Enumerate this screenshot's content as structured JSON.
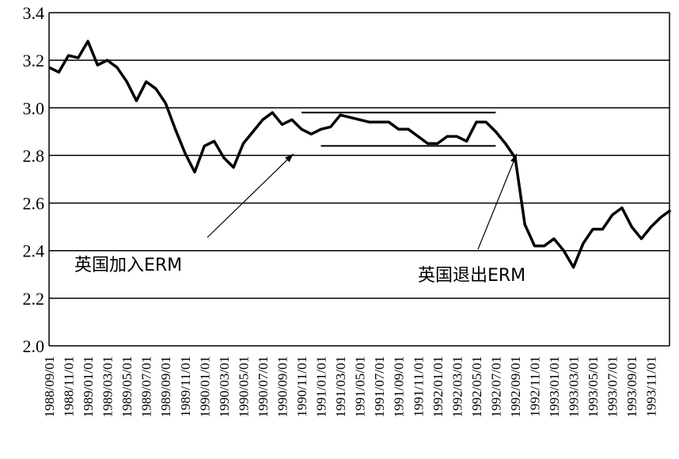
{
  "chart_data": {
    "type": "line",
    "title": "",
    "xlabel": "",
    "ylabel": "",
    "ylim": [
      2.0,
      3.4
    ],
    "yticks": [
      "2.0",
      "2.2",
      "2.4",
      "2.6",
      "2.8",
      "3.0",
      "3.2",
      "3.4"
    ],
    "grid": "horizontal",
    "x_tick_labels": [
      "1988/09/01",
      "1988/11/01",
      "1989/01/01",
      "1989/03/01",
      "1989/05/01",
      "1989/07/01",
      "1989/09/01",
      "1989/11/01",
      "1990/01/01",
      "1990/03/01",
      "1990/05/01",
      "1990/07/01",
      "1990/09/01",
      "1990/11/01",
      "1991/01/01",
      "1991/03/01",
      "1991/05/01",
      "1991/07/01",
      "1991/09/01",
      "1991/11/01",
      "1992/01/01",
      "1992/03/01",
      "1992/05/01",
      "1992/07/01",
      "1992/09/01",
      "1992/11/01",
      "1993/01/01",
      "1993/03/01",
      "1993/05/01",
      "1993/07/01",
      "1993/09/01",
      "1993/11/01"
    ],
    "series": [
      {
        "values": [
          3.17,
          3.15,
          3.22,
          3.21,
          3.28,
          3.18,
          3.2,
          3.17,
          3.11,
          3.03,
          3.11,
          3.08,
          3.02,
          2.91,
          2.81,
          2.73,
          2.84,
          2.86,
          2.79,
          2.75,
          2.85,
          2.9,
          2.95,
          2.98,
          2.93,
          2.95,
          2.91,
          2.89,
          2.91,
          2.92,
          2.97,
          2.96,
          2.95,
          2.94,
          2.94,
          2.94,
          2.91,
          2.91,
          2.88,
          2.85,
          2.85,
          2.88,
          2.88,
          2.86,
          2.94,
          2.94,
          2.9,
          2.85,
          2.79,
          2.51,
          2.42,
          2.42,
          2.45,
          2.4,
          2.33,
          2.43,
          2.49,
          2.49,
          2.55,
          2.58,
          2.5,
          2.45,
          2.5,
          2.54,
          2.57
        ]
      }
    ],
    "reference_lines": [
      {
        "y": 2.98,
        "x_start_month": 26,
        "x_end_month": 46
      },
      {
        "y": 2.84,
        "x_start_month": 28,
        "x_end_month": 46
      }
    ],
    "annotations": [
      {
        "text": "英国加入ERM",
        "points_to_month": 25,
        "points_to_y": 2.84
      },
      {
        "text": "英国退出ERM",
        "points_to_month": 48,
        "points_to_y": 2.84
      }
    ]
  }
}
